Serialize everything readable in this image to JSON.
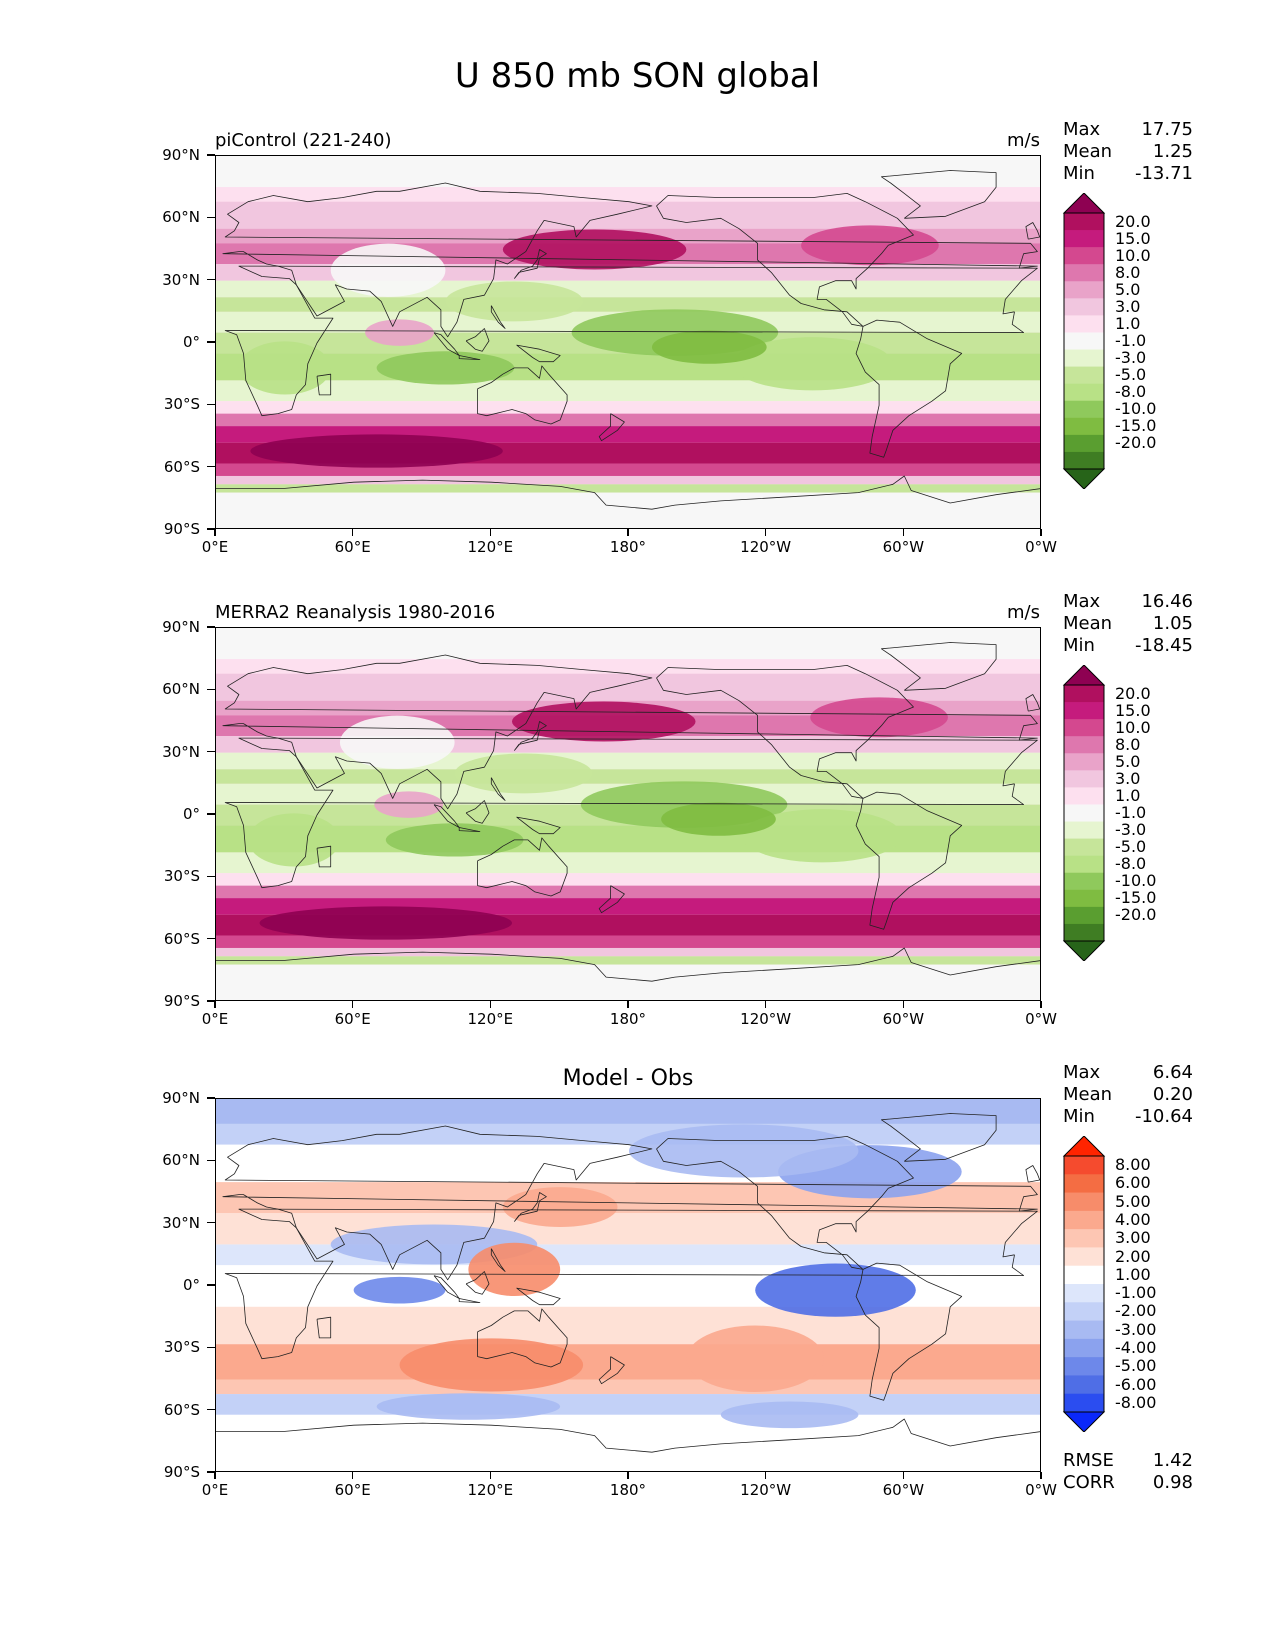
{
  "figure": {
    "title": "U 850 mb SON global"
  },
  "axes": {
    "lat_labels": [
      "90°N",
      "60°N",
      "30°N",
      "0°",
      "30°S",
      "60°S",
      "90°S"
    ],
    "lon_labels": [
      "0°E",
      "60°E",
      "120°E",
      "180°",
      "120°W",
      "60°W",
      "0°W"
    ]
  },
  "panels": [
    {
      "title": "piControl (221-240)",
      "units": "m/s",
      "stats": {
        "max_label": "Max",
        "max": "17.75",
        "mean_label": "Mean",
        "mean": "1.25",
        "min_label": "Min",
        "min": "-13.71"
      },
      "colorbar": {
        "labels": [
          "20.0",
          "15.0",
          "10.0",
          "8.0",
          "5.0",
          "3.0",
          "1.0",
          "-1.0",
          "-3.0",
          "-5.0",
          "-8.0",
          "-10.0",
          "-15.0",
          "-20.0"
        ],
        "colors": [
          "#8e0152",
          "#b0105f",
          "#c51b7d",
          "#d4488f",
          "#de77ae",
          "#e9a3c9",
          "#f1c6df",
          "#fde0ef",
          "#f7f7f7",
          "#e6f5d0",
          "#c6e59a",
          "#b8e186",
          "#8fc95c",
          "#7fbc41",
          "#5a9e30",
          "#3f7d23",
          "#276419"
        ]
      },
      "field": "wind"
    },
    {
      "title": "MERRA2 Reanalysis 1980-2016",
      "units": "m/s",
      "stats": {
        "max_label": "Max",
        "max": "16.46",
        "mean_label": "Mean",
        "mean": "1.05",
        "min_label": "Min",
        "min": "-18.45"
      },
      "colorbar": {
        "labels": [
          "20.0",
          "15.0",
          "10.0",
          "8.0",
          "5.0",
          "3.0",
          "1.0",
          "-1.0",
          "-3.0",
          "-5.0",
          "-8.0",
          "-10.0",
          "-15.0",
          "-20.0"
        ],
        "colors": [
          "#8e0152",
          "#b0105f",
          "#c51b7d",
          "#d4488f",
          "#de77ae",
          "#e9a3c9",
          "#f1c6df",
          "#fde0ef",
          "#f7f7f7",
          "#e6f5d0",
          "#c6e59a",
          "#b8e186",
          "#8fc95c",
          "#7fbc41",
          "#5a9e30",
          "#3f7d23",
          "#276419"
        ]
      },
      "field": "wind"
    },
    {
      "title": "Model - Obs",
      "units": "",
      "stats": {
        "max_label": "Max",
        "max": "6.64",
        "mean_label": "Mean",
        "mean": "0.20",
        "min_label": "Min",
        "min": "-10.64"
      },
      "colorbar": {
        "labels": [
          "8.00",
          "6.00",
          "5.00",
          "4.00",
          "3.00",
          "2.00",
          "1.00",
          "-1.00",
          "-2.00",
          "-3.00",
          "-4.00",
          "-5.00",
          "-6.00",
          "-8.00"
        ],
        "colors": [
          "#ff2400",
          "#f54b2e",
          "#f46d43",
          "#f78c6a",
          "#fba98e",
          "#fdc6b3",
          "#fee1d6",
          "#ffffff",
          "#dde6fb",
          "#c3d1f7",
          "#a8baf2",
          "#8ba2ee",
          "#6d88ea",
          "#4f6ee6",
          "#2b4df0",
          "#0a28fa"
        ]
      },
      "field": "diff",
      "extra": {
        "rmse_label": "RMSE",
        "rmse": "1.42",
        "corr_label": "CORR",
        "corr": "0.98"
      }
    }
  ]
}
